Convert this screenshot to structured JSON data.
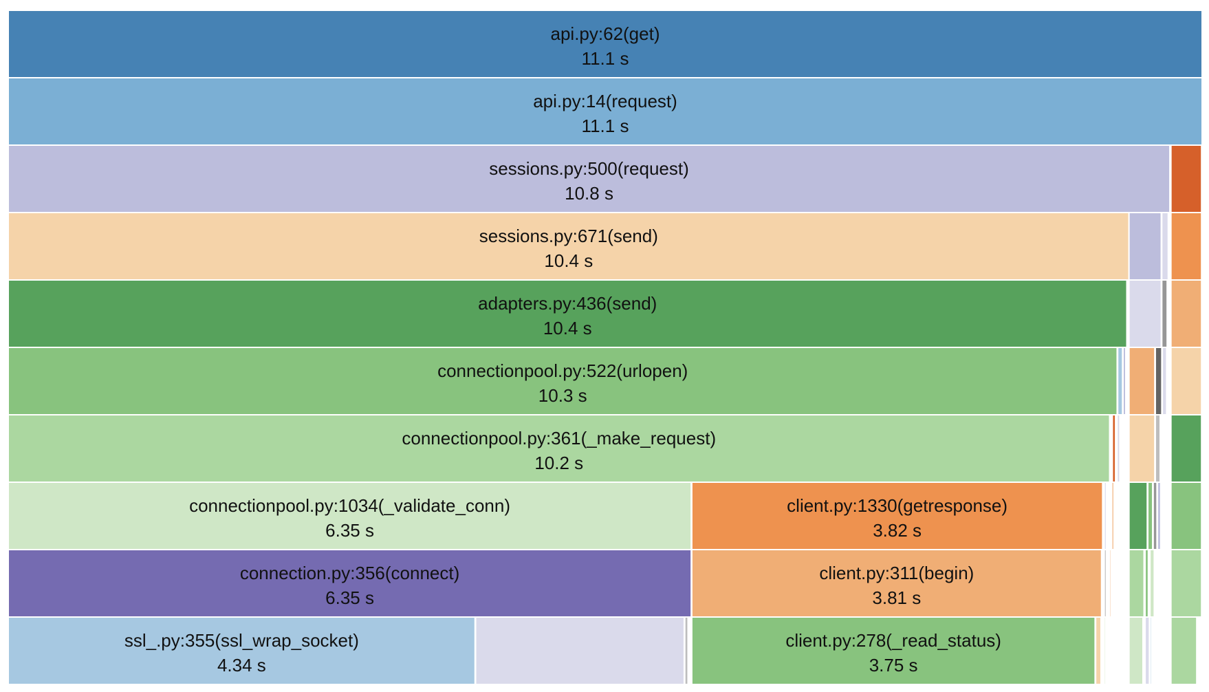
{
  "chart_data": {
    "type": "icicle",
    "unit": "s",
    "xlim": [
      0,
      11.1
    ],
    "frames": [
      {
        "depth": 0,
        "start": 0.0,
        "value": 11.1,
        "name": "api.py:62(get)",
        "time_label": "11.1 s",
        "color": "#4682b4"
      },
      {
        "depth": 1,
        "start": 0.0,
        "value": 11.1,
        "name": "api.py:14(request)",
        "time_label": "11.1 s",
        "color": "#7bafd4"
      },
      {
        "depth": 2,
        "start": 0.0,
        "value": 10.8,
        "name": "sessions.py:500(request)",
        "time_label": "10.8 s",
        "color": "#bcbddc"
      },
      {
        "depth": 2,
        "start": 10.81,
        "value": 0.285,
        "name": "",
        "time_label": "",
        "color": "#d6602a"
      },
      {
        "depth": 3,
        "start": 0.0,
        "value": 10.42,
        "name": "sessions.py:671(send)",
        "time_label": "10.4 s",
        "color": "#f5d3a9"
      },
      {
        "depth": 3,
        "start": 10.42,
        "value": 0.3,
        "name": "",
        "time_label": "",
        "color": "#bcbddc"
      },
      {
        "depth": 3,
        "start": 10.725,
        "value": 0.06,
        "name": "",
        "time_label": "",
        "color": "#dadaeb"
      },
      {
        "depth": 3,
        "start": 10.81,
        "value": 0.285,
        "name": "",
        "time_label": "",
        "color": "#ee924f"
      },
      {
        "depth": 4,
        "start": 0.0,
        "value": 10.4,
        "name": "adapters.py:436(send)",
        "time_label": "10.4 s",
        "color": "#57a25c"
      },
      {
        "depth": 4,
        "start": 10.42,
        "value": 0.3,
        "name": "",
        "time_label": "",
        "color": "#dadaeb"
      },
      {
        "depth": 4,
        "start": 10.725,
        "value": 0.05,
        "name": "",
        "time_label": "",
        "color": "#969696"
      },
      {
        "depth": 4,
        "start": 10.81,
        "value": 0.285,
        "name": "",
        "time_label": "",
        "color": "#f0ae75"
      },
      {
        "depth": 5,
        "start": 0.0,
        "value": 10.31,
        "name": "connectionpool.py:522(urlopen)",
        "time_label": "10.3 s",
        "color": "#88c37e"
      },
      {
        "depth": 5,
        "start": 10.315,
        "value": 0.045,
        "name": "",
        "time_label": "",
        "color": "#a6c8e1"
      },
      {
        "depth": 5,
        "start": 10.365,
        "value": 0.025,
        "name": "",
        "time_label": "",
        "color": "#bcbddc"
      },
      {
        "depth": 5,
        "start": 10.42,
        "value": 0.24,
        "name": "",
        "time_label": "",
        "color": "#f0ae75"
      },
      {
        "depth": 5,
        "start": 10.665,
        "value": 0.06,
        "name": "",
        "time_label": "",
        "color": "#636363"
      },
      {
        "depth": 5,
        "start": 10.73,
        "value": 0.04,
        "name": "",
        "time_label": "",
        "color": "#dadaeb"
      },
      {
        "depth": 5,
        "start": 10.81,
        "value": 0.285,
        "name": "",
        "time_label": "",
        "color": "#f5d3a9"
      },
      {
        "depth": 6,
        "start": 0.0,
        "value": 10.24,
        "name": "connectionpool.py:361(_make_request)",
        "time_label": "10.2 s",
        "color": "#abd7a0"
      },
      {
        "depth": 6,
        "start": 10.265,
        "value": 0.03,
        "name": "",
        "time_label": "",
        "color": "#d6602a"
      },
      {
        "depth": 6,
        "start": 10.31,
        "value": 0.025,
        "name": "",
        "time_label": "",
        "color": "#dadaeb"
      },
      {
        "depth": 6,
        "start": 10.42,
        "value": 0.24,
        "name": "",
        "time_label": "",
        "color": "#f5d3a9"
      },
      {
        "depth": 6,
        "start": 10.665,
        "value": 0.045,
        "name": "",
        "time_label": "",
        "color": "#bdbdbd"
      },
      {
        "depth": 6,
        "start": 10.81,
        "value": 0.285,
        "name": "",
        "time_label": "",
        "color": "#57a25c"
      },
      {
        "depth": 7,
        "start": 0.0,
        "value": 6.35,
        "name": "connectionpool.py:1034(_validate_conn)",
        "time_label": "6.35 s",
        "color": "#cfe7c6"
      },
      {
        "depth": 7,
        "start": 6.355,
        "value": 3.82,
        "name": "client.py:1330(getresponse)",
        "time_label": "3.82 s",
        "color": "#ee924f"
      },
      {
        "depth": 7,
        "start": 10.19,
        "value": 0.02,
        "name": "",
        "time_label": "",
        "color": "#dadaeb"
      },
      {
        "depth": 7,
        "start": 10.26,
        "value": 0.02,
        "name": "",
        "time_label": "",
        "color": "#f0ae75"
      },
      {
        "depth": 7,
        "start": 10.42,
        "value": 0.17,
        "name": "",
        "time_label": "",
        "color": "#57a25c"
      },
      {
        "depth": 7,
        "start": 10.595,
        "value": 0.045,
        "name": "",
        "time_label": "",
        "color": "#88c37e"
      },
      {
        "depth": 7,
        "start": 10.645,
        "value": 0.035,
        "name": "",
        "time_label": "",
        "color": "#969696"
      },
      {
        "depth": 7,
        "start": 10.685,
        "value": 0.03,
        "name": "",
        "time_label": "",
        "color": "#bcbddc"
      },
      {
        "depth": 7,
        "start": 10.81,
        "value": 0.285,
        "name": "",
        "time_label": "",
        "color": "#88c37e"
      },
      {
        "depth": 8,
        "start": 0.0,
        "value": 6.35,
        "name": "connection.py:356(connect)",
        "time_label": "6.35 s",
        "color": "#756bb1"
      },
      {
        "depth": 8,
        "start": 6.355,
        "value": 3.81,
        "name": "client.py:311(begin)",
        "time_label": "3.81 s",
        "color": "#f0ae75"
      },
      {
        "depth": 8,
        "start": 10.19,
        "value": 0.02,
        "name": "",
        "time_label": "",
        "color": "#bdbdbd"
      },
      {
        "depth": 8,
        "start": 10.24,
        "value": 0.015,
        "name": "",
        "time_label": "",
        "color": "#f0ae75"
      },
      {
        "depth": 8,
        "start": 10.42,
        "value": 0.14,
        "name": "",
        "time_label": "",
        "color": "#abd7a0"
      },
      {
        "depth": 8,
        "start": 10.57,
        "value": 0.03,
        "name": "",
        "time_label": "",
        "color": "#88c37e"
      },
      {
        "depth": 8,
        "start": 10.615,
        "value": 0.04,
        "name": "",
        "time_label": "",
        "color": "#cfe7c6"
      },
      {
        "depth": 8,
        "start": 10.81,
        "value": 0.285,
        "name": "",
        "time_label": "",
        "color": "#abd7a0"
      },
      {
        "depth": 9,
        "start": 0.0,
        "value": 4.34,
        "name": "ssl_.py:355(ssl_wrap_socket)",
        "time_label": "4.34 s",
        "color": "#a6c8e1"
      },
      {
        "depth": 9,
        "start": 4.345,
        "value": 1.94,
        "name": "",
        "time_label": "",
        "color": "#dadaeb"
      },
      {
        "depth": 9,
        "start": 6.29,
        "value": 0.03,
        "name": "",
        "time_label": "",
        "color": "#bdbdbd"
      },
      {
        "depth": 9,
        "start": 6.355,
        "value": 3.75,
        "name": "client.py:278(_read_status)",
        "time_label": "3.75 s",
        "color": "#88c37e"
      },
      {
        "depth": 9,
        "start": 10.11,
        "value": 0.05,
        "name": "",
        "time_label": "",
        "color": "#f5d3a9"
      },
      {
        "depth": 9,
        "start": 10.19,
        "value": 0.015,
        "name": "",
        "time_label": "",
        "color": "#cfe7c6"
      },
      {
        "depth": 9,
        "start": 10.42,
        "value": 0.13,
        "name": "",
        "time_label": "",
        "color": "#cfe7c6"
      },
      {
        "depth": 9,
        "start": 10.57,
        "value": 0.04,
        "name": "",
        "time_label": "",
        "color": "#dadaeb"
      },
      {
        "depth": 9,
        "start": 10.615,
        "value": 0.015,
        "name": "",
        "time_label": "",
        "color": "#a6c8e1"
      },
      {
        "depth": 9,
        "start": 10.81,
        "value": 0.24,
        "name": "",
        "time_label": "",
        "color": "#abd7a0"
      }
    ]
  }
}
